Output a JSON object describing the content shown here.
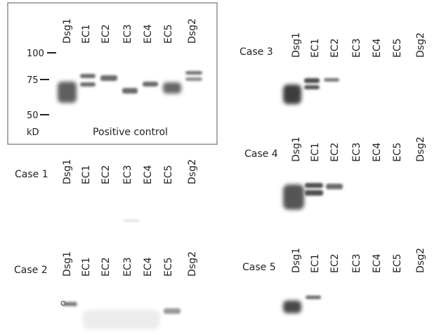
{
  "lanes": [
    "Dsg1",
    "EC1",
    "EC2",
    "EC3",
    "EC4",
    "EC5",
    "Dsg2"
  ],
  "positive_control": {
    "title": "Positive control",
    "markers": [
      "100",
      "75",
      "50"
    ],
    "unit": "kD"
  },
  "cases": [
    {
      "label": "Case 1"
    },
    {
      "label": "Case 2"
    },
    {
      "label": "Case 3"
    },
    {
      "label": "Case 4"
    },
    {
      "label": "Case 5"
    }
  ],
  "colors": {
    "band_dark": "#4a4a4a",
    "band_mid": "#7a7a7a",
    "band_light": "#b5b5b5",
    "box_border": "#555555"
  }
}
